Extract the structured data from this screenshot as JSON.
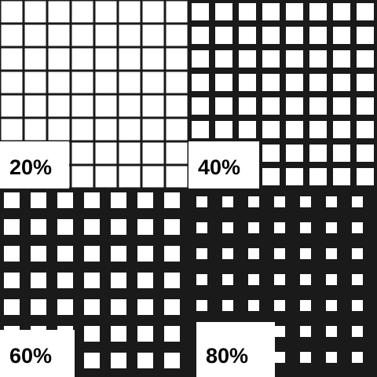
{
  "panels": [
    {
      "label": "20%"
    },
    {
      "label": "40%"
    },
    {
      "label": "60%"
    },
    {
      "label": "80%"
    }
  ]
}
